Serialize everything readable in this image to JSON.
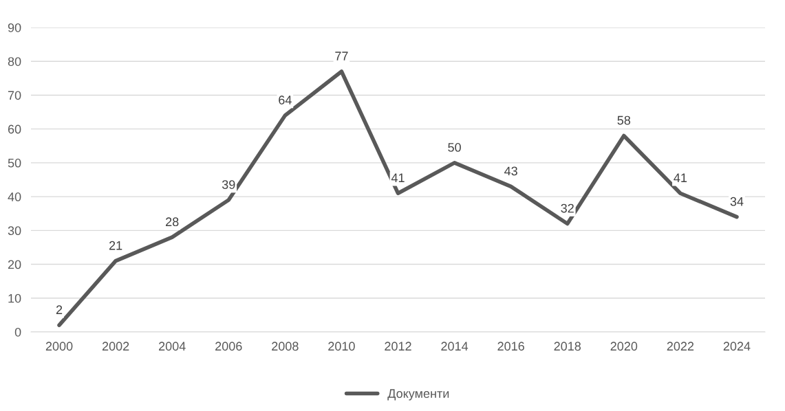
{
  "chart_data": {
    "type": "line",
    "categories": [
      "2000",
      "2002",
      "2004",
      "2006",
      "2008",
      "2010",
      "2012",
      "2014",
      "2016",
      "2018",
      "2020",
      "2022",
      "2024"
    ],
    "series": [
      {
        "name": "Документи",
        "color": "#595959",
        "values": [
          2,
          21,
          28,
          39,
          64,
          77,
          41,
          50,
          43,
          32,
          58,
          41,
          34
        ]
      }
    ],
    "ylim": [
      0,
      90
    ],
    "yticks": [
      0,
      10,
      20,
      30,
      40,
      50,
      60,
      70,
      80,
      90
    ],
    "grid": "y",
    "legend": "bottom",
    "data_labels": true,
    "marker": "none",
    "line_style": "solid"
  }
}
